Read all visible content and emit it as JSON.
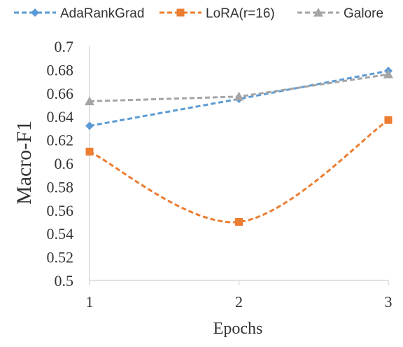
{
  "chart_data": {
    "type": "line",
    "xlabel": "Epochs",
    "ylabel": "Macro-F1",
    "x": [
      1,
      2,
      3
    ],
    "x_tick_labels": [
      "1",
      "2",
      "3"
    ],
    "ylim": [
      0.5,
      0.7
    ],
    "y_ticks": [
      0.5,
      0.52,
      0.54,
      0.56,
      0.58,
      0.6,
      0.62,
      0.64,
      0.66,
      0.68,
      0.7
    ],
    "y_tick_labels": [
      "0.5",
      "0.52",
      "0.54",
      "0.56",
      "0.58",
      "0.6",
      "0.62",
      "0.64",
      "0.66",
      "0.68",
      "0.7"
    ],
    "grid": false,
    "legend_position": "top",
    "series": [
      {
        "name": "AdaRankGrad",
        "values": [
          0.632,
          0.655,
          0.679
        ],
        "color": "#5B9BD5",
        "marker": "diamond",
        "smooth": false
      },
      {
        "name": "LoRA(r=16)",
        "values": [
          0.61,
          0.55,
          0.637
        ],
        "color": "#ED7D31",
        "marker": "square",
        "smooth": true
      },
      {
        "name": "Galore",
        "values": [
          0.653,
          0.657,
          0.676
        ],
        "color": "#A5A5A5",
        "marker": "triangle",
        "smooth": false
      }
    ]
  }
}
